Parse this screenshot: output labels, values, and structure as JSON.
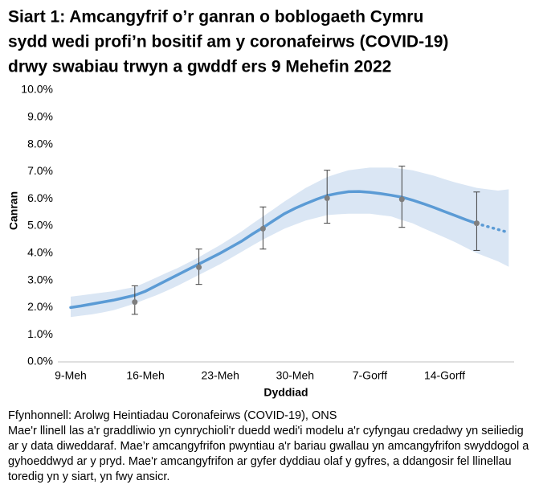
{
  "chart_data": {
    "type": "line",
    "title": [
      "Siart 1: Amcangyfrif o’r ganran o boblogaeth Cymru",
      "sydd wedi profi’n bositif am y coronafeirws (COVID-19)",
      "drwy swabiau trwyn a gwddf ers 9 Mehefin 2022"
    ],
    "x_label": "Dyddiad",
    "y_label": "Canran",
    "categories": [
      "9-Meh",
      null,
      null,
      null,
      null,
      null,
      null,
      "16-Meh",
      null,
      null,
      null,
      null,
      null,
      null,
      "23-Meh",
      null,
      null,
      null,
      null,
      null,
      null,
      "30-Meh",
      null,
      null,
      null,
      null,
      null,
      null,
      "7-Gorff",
      null,
      null,
      null,
      null,
      null,
      null,
      "14-Gorff",
      null,
      null,
      null,
      null,
      null,
      null
    ],
    "ylim": [
      0,
      10
    ],
    "yticks": [
      {
        "value": 0,
        "label": "0.0%"
      },
      {
        "value": 1,
        "label": "1.0%"
      },
      {
        "value": 2,
        "label": "2.0%"
      },
      {
        "value": 3,
        "label": "3.0%"
      },
      {
        "value": 4,
        "label": "4.0%"
      },
      {
        "value": 5,
        "label": "5.0%"
      },
      {
        "value": 6,
        "label": "6.0%"
      },
      {
        "value": 7,
        "label": "7.0%"
      },
      {
        "value": 8,
        "label": "8.0%"
      },
      {
        "value": 9,
        "label": "9.0%"
      },
      {
        "value": 10,
        "label": "10.0%"
      }
    ],
    "band": {
      "color": "#dae6f4",
      "upper": [
        2.4,
        2.45,
        2.5,
        2.55,
        2.6,
        2.68,
        2.75,
        2.92,
        3.1,
        3.28,
        3.45,
        3.65,
        3.85,
        4.08,
        4.3,
        4.55,
        4.8,
        5.08,
        5.35,
        5.62,
        5.9,
        6.15,
        6.4,
        6.6,
        6.8,
        6.93,
        7.05,
        7.1,
        7.15,
        7.15,
        7.15,
        7.1,
        7.05,
        6.95,
        6.85,
        6.72,
        6.6,
        6.5,
        6.4,
        6.35,
        6.3,
        6.35
      ],
      "lower": [
        1.65,
        1.7,
        1.75,
        1.82,
        1.9,
        2.02,
        2.15,
        2.3,
        2.45,
        2.62,
        2.8,
        3.0,
        3.2,
        3.4,
        3.6,
        3.82,
        4.05,
        4.28,
        4.5,
        4.7,
        4.9,
        5.05,
        5.2,
        5.3,
        5.4,
        5.43,
        5.45,
        5.45,
        5.45,
        5.4,
        5.35,
        5.22,
        5.1,
        4.92,
        4.75,
        4.58,
        4.4,
        4.2,
        4.0,
        3.85,
        3.7,
        3.5
      ]
    },
    "series": [
      {
        "color": "#5b9bd5",
        "dashed": false,
        "values": [
          2.0,
          2.06,
          2.13,
          2.2,
          2.27,
          2.36,
          2.45,
          2.6,
          2.8,
          3.0,
          3.2,
          3.4,
          3.6,
          3.8,
          4.0,
          4.22,
          4.44,
          4.7,
          4.94,
          5.2,
          5.45,
          5.65,
          5.82,
          5.98,
          6.12,
          6.2,
          6.26,
          6.27,
          6.24,
          6.19,
          6.13,
          6.06,
          5.95,
          5.82,
          5.68,
          5.53,
          5.38,
          5.23,
          5.09,
          null,
          null,
          null
        ]
      },
      {
        "color": "#5b9bd5",
        "dashed": true,
        "values": [
          null,
          null,
          null,
          null,
          null,
          null,
          null,
          null,
          null,
          null,
          null,
          null,
          null,
          null,
          null,
          null,
          null,
          null,
          null,
          null,
          null,
          null,
          null,
          null,
          null,
          null,
          null,
          null,
          null,
          null,
          null,
          null,
          null,
          null,
          null,
          null,
          null,
          null,
          5.09,
          4.98,
          4.87,
          4.76
        ]
      }
    ],
    "estimates": {
      "color": "#7f7f7f",
      "values": [
        null,
        null,
        null,
        null,
        null,
        null,
        2.2,
        null,
        null,
        null,
        null,
        null,
        3.48,
        null,
        null,
        null,
        null,
        null,
        4.9,
        null,
        null,
        null,
        null,
        null,
        6.02,
        null,
        null,
        null,
        null,
        null,
        null,
        5.98,
        null,
        null,
        null,
        null,
        null,
        null,
        5.1,
        null,
        null,
        null
      ],
      "lower": [
        null,
        null,
        null,
        null,
        null,
        null,
        1.75,
        null,
        null,
        null,
        null,
        null,
        2.85,
        null,
        null,
        null,
        null,
        null,
        4.15,
        null,
        null,
        null,
        null,
        null,
        5.1,
        null,
        null,
        null,
        null,
        null,
        null,
        4.95,
        null,
        null,
        null,
        null,
        null,
        null,
        4.1,
        null,
        null,
        null
      ],
      "upper": [
        null,
        null,
        null,
        null,
        null,
        null,
        2.8,
        null,
        null,
        null,
        null,
        null,
        4.15,
        null,
        null,
        null,
        null,
        null,
        5.7,
        null,
        null,
        null,
        null,
        null,
        7.05,
        null,
        null,
        null,
        null,
        null,
        null,
        7.2,
        null,
        null,
        null,
        null,
        null,
        null,
        6.25,
        null,
        null,
        null
      ]
    },
    "source": "Ffynhonnell: Arolwg Heintiadau Coronafeirws (COVID-19), ONS",
    "note": "Mae'r llinell las a'r graddliwio yn cynrychioli'r duedd wedi'i modelu a'r cyfyngau credadwy yn seiliedig ar y data diweddaraf. Mae’r amcangyfrifon pwyntiau a'r bariau gwallau yn amcangyfrifon swyddogol a gyhoeddwyd ar y pryd. Mae'r amcangyfrifon ar gyfer dyddiau olaf y gyfres, a ddangosir fel llinellau toredig yn y siart, yn fwy ansicr."
  }
}
